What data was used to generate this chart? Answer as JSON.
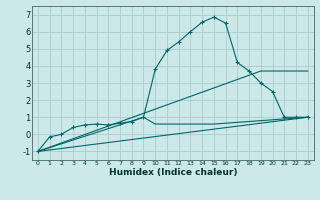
{
  "xlabel": "Humidex (Indice chaleur)",
  "bg_color": "#cce8e8",
  "grid_color": "#aacccc",
  "line_color": "#006666",
  "xlim": [
    -0.5,
    23.5
  ],
  "ylim": [
    -1.5,
    7.5
  ],
  "xtick_labels": [
    "0",
    "1",
    "2",
    "3",
    "4",
    "5",
    "6",
    "7",
    "8",
    "9",
    "10",
    "11",
    "12",
    "13",
    "14",
    "15",
    "16",
    "17",
    "18",
    "19",
    "20",
    "21",
    "22",
    "23"
  ],
  "xtick_vals": [
    0,
    1,
    2,
    3,
    4,
    5,
    6,
    7,
    8,
    9,
    10,
    11,
    12,
    13,
    14,
    15,
    16,
    17,
    18,
    19,
    20,
    21,
    22,
    23
  ],
  "ytick_vals": [
    -1,
    0,
    1,
    2,
    3,
    4,
    5,
    6,
    7
  ],
  "line1_x": [
    0,
    1,
    2,
    3,
    4,
    5,
    6,
    7,
    8,
    9,
    10,
    11,
    12,
    13,
    14,
    15,
    16,
    17,
    18,
    19,
    20,
    21,
    22,
    23
  ],
  "line1_y": [
    -1.0,
    -0.15,
    0.0,
    0.4,
    0.55,
    0.6,
    0.55,
    0.65,
    0.75,
    1.0,
    3.8,
    4.9,
    5.4,
    6.0,
    6.55,
    6.85,
    6.5,
    4.2,
    3.7,
    3.0,
    2.5,
    1.0,
    1.0,
    1.0
  ],
  "line2_x": [
    0,
    23
  ],
  "line2_y": [
    -1.0,
    1.0
  ],
  "line3_x": [
    0,
    19,
    23
  ],
  "line3_y": [
    -1.0,
    3.7,
    3.7
  ],
  "line4_x": [
    0,
    9,
    10,
    11,
    12,
    13,
    14,
    15,
    16,
    17,
    18,
    19,
    20,
    21,
    22,
    23
  ],
  "line4_y": [
    -1.0,
    1.0,
    0.6,
    0.6,
    0.6,
    0.6,
    0.6,
    0.6,
    0.65,
    0.7,
    0.75,
    0.8,
    0.85,
    0.9,
    0.95,
    1.0
  ]
}
